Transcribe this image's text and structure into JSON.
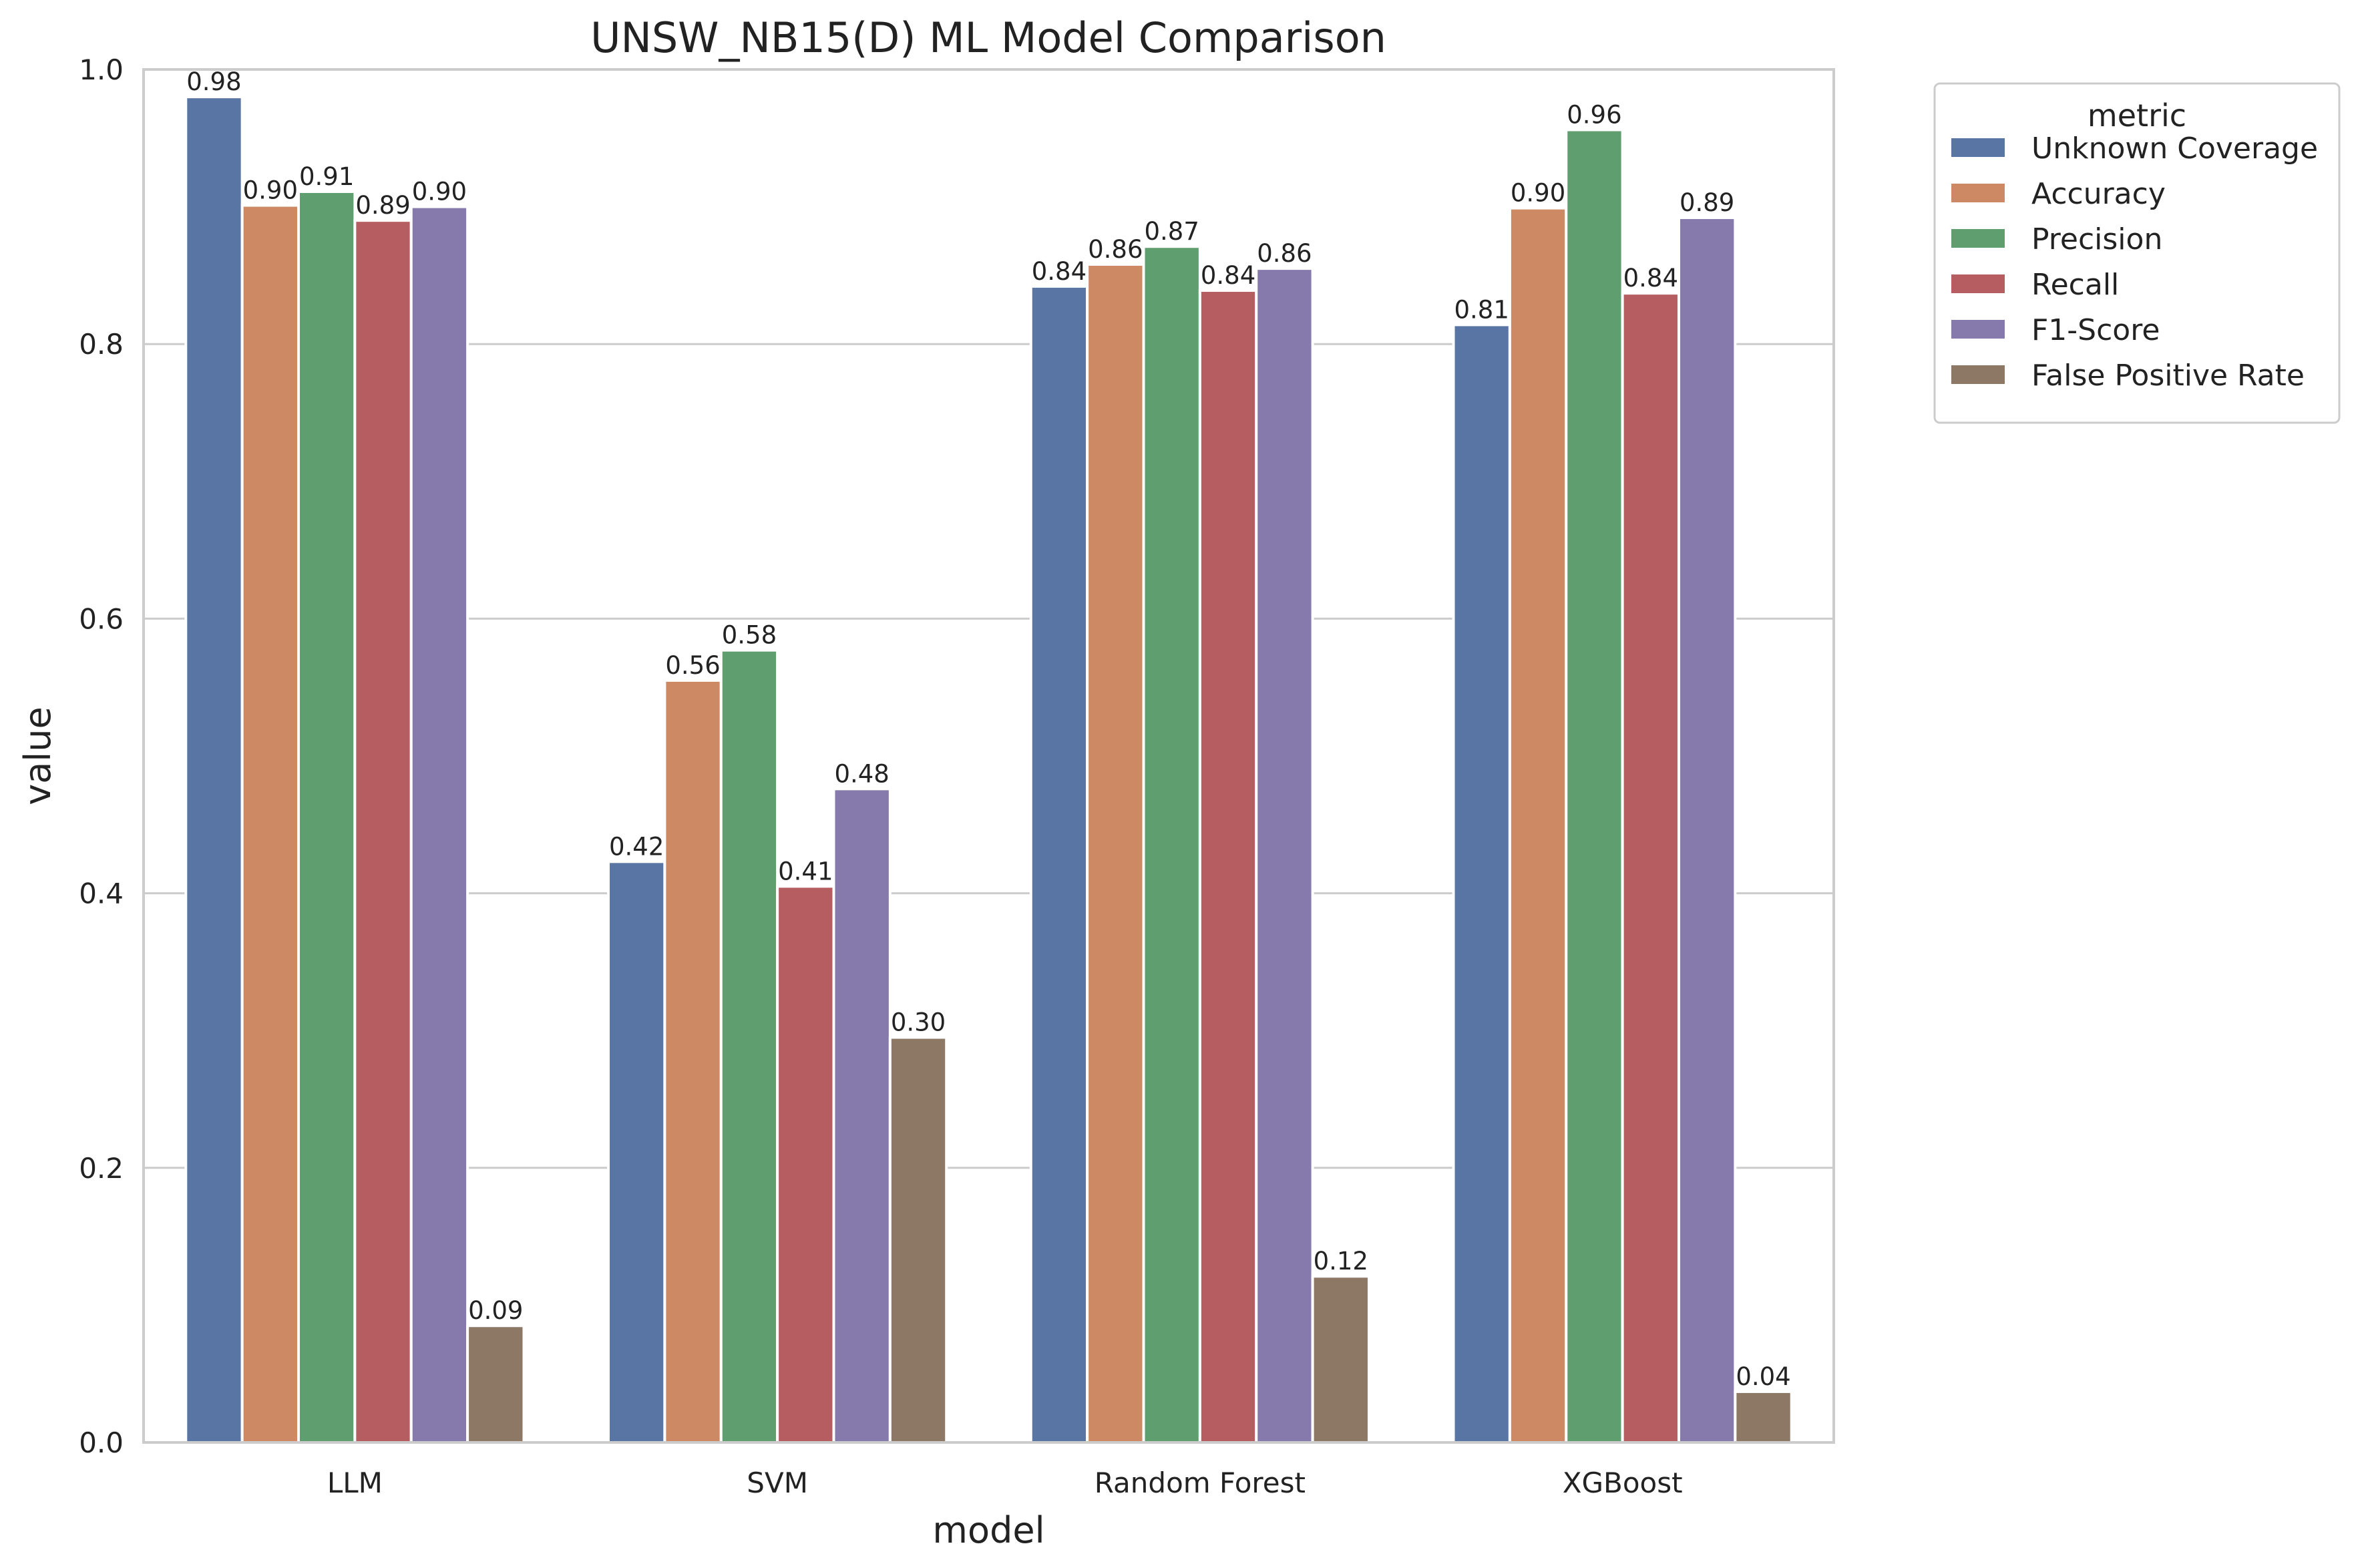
{
  "chart_data": {
    "type": "bar",
    "title": "UNSW_NB15(D) ML Model Comparison",
    "xlabel": "model",
    "ylabel": "value",
    "ylim": [
      0,
      1.0
    ],
    "yticks": [
      "0.0",
      "0.2",
      "0.4",
      "0.6",
      "0.8",
      "1.0"
    ],
    "grid": "horizontal",
    "legend": {
      "title": "metric",
      "placement": "outside-top-right"
    },
    "categories": [
      "LLM",
      "SVM",
      "Random Forest",
      "XGBoost"
    ],
    "series": [
      {
        "name": "Unknown Coverage",
        "color": "#5875a4",
        "values": [
          0.98,
          0.423,
          0.842,
          0.814
        ],
        "labels": [
          "0.98",
          "0.42",
          "0.84",
          "0.81"
        ]
      },
      {
        "name": "Accuracy",
        "color": "#cc8963",
        "values": [
          0.901,
          0.555,
          0.858,
          0.899
        ],
        "labels": [
          "0.90",
          "0.56",
          "0.86",
          "0.90"
        ]
      },
      {
        "name": "Precision",
        "color": "#5f9e6e",
        "values": [
          0.911,
          0.577,
          0.871,
          0.956
        ],
        "labels": [
          "0.91",
          "0.58",
          "0.87",
          "0.96"
        ]
      },
      {
        "name": "Recall",
        "color": "#b55d60",
        "values": [
          0.89,
          0.405,
          0.839,
          0.837
        ],
        "labels": [
          "0.89",
          "0.41",
          "0.84",
          "0.84"
        ]
      },
      {
        "name": "F1-Score",
        "color": "#857aab",
        "values": [
          0.9,
          0.476,
          0.855,
          0.892
        ],
        "labels": [
          "0.90",
          "0.48",
          "0.86",
          "0.89"
        ]
      },
      {
        "name": "False Positive Rate",
        "color": "#8d7866",
        "values": [
          0.085,
          0.295,
          0.121,
          0.037
        ],
        "labels": [
          "0.09",
          "0.30",
          "0.12",
          "0.04"
        ]
      }
    ]
  }
}
